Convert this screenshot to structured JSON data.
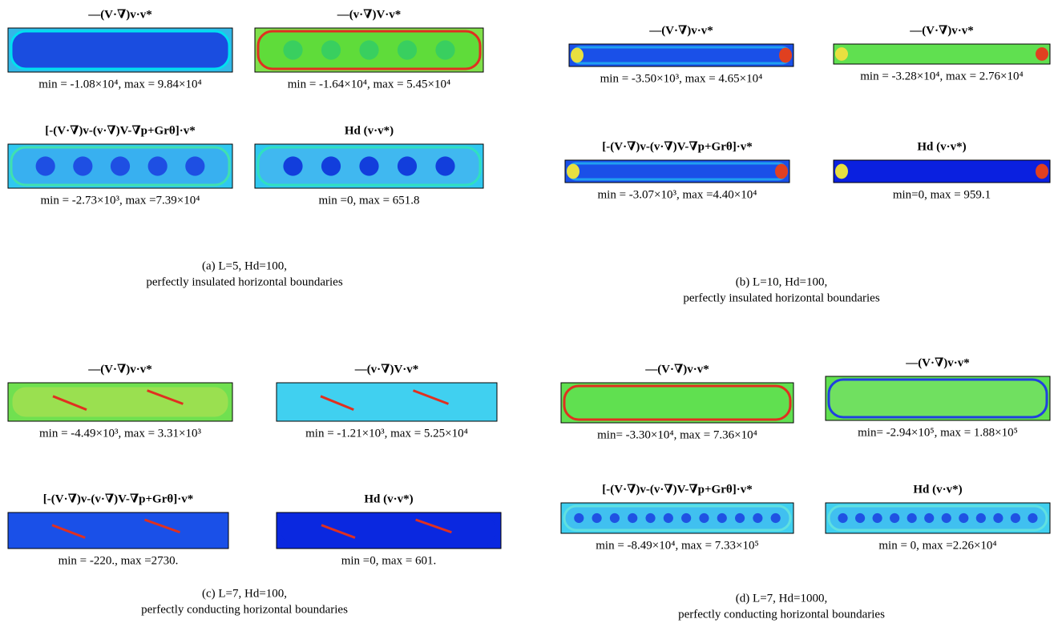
{
  "panels": [
    {
      "plots": [
        {
          "title": "—(V·∇)v·v*",
          "range": "min = -1.08×10⁴,  max = 9.84×10⁴"
        },
        {
          "title": "—(v·∇)V·v*",
          "range": "min = -1.64×10⁴,  max = 5.45×10⁴"
        },
        {
          "title": "[-(V·∇)v-(v·∇)V-∇p+Grθ]·v*",
          "range": "min = -2.73×10³,  max =7.39×10⁴"
        },
        {
          "title": "Hd (v·v*)",
          "range": "min =0,  max = 651.8"
        }
      ],
      "caption": [
        "(a) L=5, Hd=100,",
        "perfectly insulated horizontal boundaries"
      ]
    },
    {
      "plots": [
        {
          "title": "—(V·∇)v·v*",
          "range": "min = -3.50×10³,  max = 4.65×10⁴"
        },
        {
          "title": "—(V·∇)v·v*",
          "range": "min = -3.28×10⁴,  max = 2.76×10⁴"
        },
        {
          "title": "[-(V·∇)v-(v·∇)V-∇p+Grθ]·v*",
          "range": "min = -3.07×10³,  max =4.40×10⁴"
        },
        {
          "title": "Hd (v·v*)",
          "range": "min=0,  max = 959.1"
        }
      ],
      "caption": [
        "(b) L=10, Hd=100,",
        "perfectly insulated horizontal boundaries"
      ]
    },
    {
      "plots": [
        {
          "title": "—(V·∇)v·v*",
          "range": "min = -4.49×10³,  max = 3.31×10³"
        },
        {
          "title": "—(v·∇)V·v*",
          "range": "min = -1.21×10³,  max = 5.25×10⁴"
        },
        {
          "title": "[-(V·∇)v-(v·∇)V-∇p+Grθ]·v*",
          "range": "min = -220.,  max =2730."
        },
        {
          "title": "Hd (v·v*)",
          "range": "min =0,  max = 601."
        }
      ],
      "caption": [
        "(c) L=7, Hd=100,",
        "perfectly conducting horizontal boundaries"
      ]
    },
    {
      "plots": [
        {
          "title": "—(V·∇)v·v*",
          "range": "min= -3.30×10⁴,  max = 7.36×10⁴"
        },
        {
          "title": "—(V·∇)v·v*",
          "range": "min= -2.94×10⁵,  max = 1.88×10⁵"
        },
        {
          "title": "[-(V·∇)v-(v·∇)V-∇p+Grθ]·v*",
          "range": "min = -8.49×10⁴,  max = 7.33×10⁵"
        },
        {
          "title": "Hd (v·v*)",
          "range": "min = 0,  max =2.26×10⁴"
        }
      ],
      "caption": [
        "(d) L=7, Hd=1000,",
        "perfectly conducting horizontal boundaries"
      ]
    }
  ]
}
